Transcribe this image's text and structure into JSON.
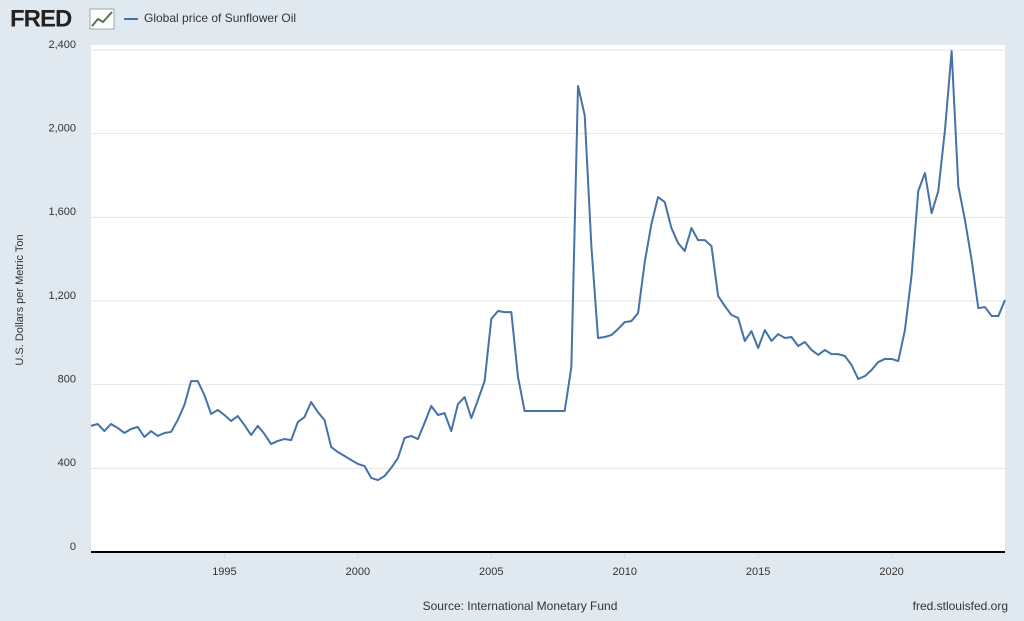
{
  "chart_data": {
    "type": "line",
    "logo": "FRED",
    "y_label": "U.S. Dollars per Metric Ton",
    "source": "Source: International Monetary Fund",
    "site": "fred.stlouisfed.org",
    "xlim": [
      1990,
      2024.25
    ],
    "xticks": [
      1995,
      2000,
      2005,
      2010,
      2015,
      2020
    ],
    "ylim": [
      0,
      2400
    ],
    "yticks": [
      0,
      400,
      800,
      {
        "value": 1200,
        "label": "1,200"
      },
      {
        "value": 1600,
        "label": "1,600"
      },
      {
        "value": 2000,
        "label": "2,000"
      },
      {
        "value": 2400,
        "label": "2,400"
      }
    ],
    "grid": true,
    "x": [
      1990,
      1990.25,
      1990.5,
      1990.75,
      1991,
      1991.25,
      1991.5,
      1991.75,
      1992,
      1992.25,
      1992.5,
      1992.75,
      1993,
      1993.25,
      1993.5,
      1993.75,
      1994,
      1994.25,
      1994.5,
      1994.75,
      1995,
      1995.25,
      1995.5,
      1995.75,
      1996,
      1996.25,
      1996.5,
      1996.75,
      1997,
      1997.25,
      1997.5,
      1997.75,
      1998,
      1998.25,
      1998.5,
      1998.75,
      1999,
      1999.25,
      1999.5,
      1999.75,
      2000,
      2000.25,
      2000.5,
      2000.75,
      2001,
      2001.25,
      2001.5,
      2001.75,
      2002,
      2002.25,
      2002.5,
      2002.75,
      2003,
      2003.25,
      2003.5,
      2003.75,
      2004,
      2004.25,
      2004.5,
      2004.75,
      2005,
      2005.25,
      2005.5,
      2005.75,
      2006,
      2006.25,
      2006.5,
      2006.75,
      2007,
      2007.25,
      2007.5,
      2007.75,
      2008,
      2008.25,
      2008.5,
      2008.75,
      2009,
      2009.25,
      2009.5,
      2009.75,
      2010,
      2010.25,
      2010.5,
      2010.75,
      2011,
      2011.25,
      2011.5,
      2011.75,
      2012,
      2012.25,
      2012.5,
      2012.75,
      2013,
      2013.25,
      2013.5,
      2013.75,
      2014,
      2014.25,
      2014.5,
      2014.75,
      2015,
      2015.25,
      2015.5,
      2015.75,
      2016,
      2016.25,
      2016.5,
      2016.75,
      2017,
      2017.25,
      2017.5,
      2017.75,
      2018,
      2018.25,
      2018.5,
      2018.75,
      2019,
      2019.25,
      2019.5,
      2019.75,
      2020,
      2020.25,
      2020.5,
      2020.75,
      2021,
      2021.25,
      2021.5,
      2021.75,
      2022,
      2022.25,
      2022.5,
      2022.75,
      2023,
      2023.25,
      2023.5,
      2023.75,
      2024,
      2024.25
    ],
    "series": [
      {
        "name": "Global price of Sunflower Oil",
        "color": "#4572a7",
        "values": [
          603,
          612,
          578,
          612,
          593,
          569,
          588,
          598,
          550,
          578,
          555,
          569,
          574,
          631,
          703,
          817,
          817,
          750,
          660,
          679,
          655,
          626,
          650,
          607,
          559,
          603,
          564,
          516,
          531,
          540,
          535,
          621,
          645,
          717,
          669,
          631,
          502,
          478,
          459,
          440,
          421,
          411,
          354,
          344,
          363,
          402,
          449,
          545,
          555,
          540,
          617,
          698,
          655,
          664,
          578,
          707,
          741,
          640,
          727,
          817,
          1114,
          1152,
          1147,
          1147,
          837,
          674,
          674,
          674,
          674,
          674,
          674,
          674,
          884,
          2228,
          2089,
          1463,
          1023,
          1028,
          1037,
          1066,
          1099,
          1104,
          1142,
          1386,
          1568,
          1697,
          1673,
          1549,
          1477,
          1439,
          1549,
          1491,
          1491,
          1463,
          1224,
          1176,
          1133,
          1119,
          1009,
          1056,
          975,
          1061,
          1009,
          1042,
          1023,
          1028,
          985,
          1004,
          966,
          942,
          966,
          946,
          946,
          937,
          894,
          827,
          841,
          870,
          908,
          923,
          923,
          913,
          1061,
          1324,
          1726,
          1812,
          1620,
          1726,
          2017,
          2395,
          1750,
          1587,
          1396,
          1166,
          1171,
          1128,
          1128,
          1205
        ]
      }
    ]
  }
}
